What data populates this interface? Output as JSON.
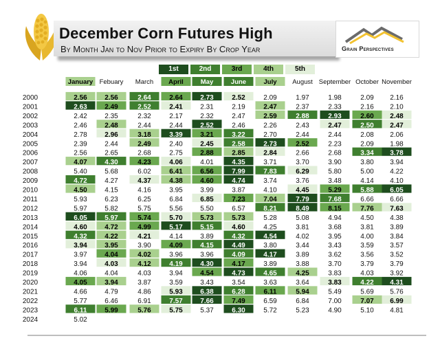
{
  "header": {
    "title": "December Corn Futures High",
    "subtitle": "By Month Jan to Nov Prior to Expiry By Crop Year",
    "logo_text": "Grain Perspectives"
  },
  "legend": {
    "items": [
      {
        "label": "1st",
        "color": "#1e4d1e"
      },
      {
        "label": "2nd",
        "color": "#3f7f2f"
      },
      {
        "label": "3rd",
        "color": "#6aa84f"
      },
      {
        "label": "4th",
        "color": "#a9d08e"
      },
      {
        "label": "5th",
        "color": "#e2efda"
      }
    ]
  },
  "chart_data": {
    "type": "table",
    "title": "December Corn Futures High",
    "subtitle": "By Month Jan to Nov Prior to Expiry By Crop Year",
    "columns": [
      "January",
      "Febuary",
      "March",
      "April",
      "May",
      "June",
      "July",
      "August",
      "September",
      "October",
      "November"
    ],
    "column_rank": [
      4,
      0,
      0,
      3,
      2,
      2,
      4,
      0,
      0,
      0,
      0
    ],
    "rows": [
      {
        "year": "2000",
        "values": [
          2.56,
          2.56,
          2.64,
          2.64,
          2.73,
          2.52,
          2.09,
          1.97,
          1.98,
          2.09,
          2.16
        ],
        "ranks": [
          4,
          4,
          2,
          3,
          1,
          5,
          0,
          0,
          0,
          0,
          0
        ]
      },
      {
        "year": "2001",
        "values": [
          2.63,
          2.49,
          2.52,
          2.41,
          2.31,
          2.19,
          2.47,
          2.37,
          2.33,
          2.16,
          2.1
        ],
        "ranks": [
          1,
          3,
          2,
          5,
          0,
          0,
          4,
          0,
          0,
          0,
          0
        ]
      },
      {
        "year": "2002",
        "values": [
          2.42,
          2.35,
          2.32,
          2.17,
          2.32,
          2.47,
          2.59,
          2.88,
          2.93,
          2.6,
          2.48
        ],
        "ranks": [
          0,
          0,
          0,
          0,
          0,
          0,
          4,
          2,
          1,
          3,
          5
        ]
      },
      {
        "year": "2003",
        "values": [
          2.46,
          2.48,
          2.44,
          2.44,
          2.52,
          2.46,
          2.26,
          2.43,
          2.47,
          2.5,
          2.47
        ],
        "ranks": [
          0,
          4,
          0,
          0,
          1,
          0,
          0,
          0,
          5,
          2,
          5
        ]
      },
      {
        "year": "2004",
        "values": [
          2.78,
          2.96,
          3.18,
          3.39,
          3.21,
          3.22,
          2.7,
          2.44,
          2.44,
          2.08,
          2.06
        ],
        "ranks": [
          0,
          5,
          4,
          1,
          3,
          2,
          0,
          0,
          0,
          0,
          0
        ]
      },
      {
        "year": "2005",
        "values": [
          2.39,
          2.44,
          2.49,
          2.4,
          2.45,
          2.58,
          2.73,
          2.52,
          2.23,
          2.09,
          1.98
        ],
        "ranks": [
          0,
          0,
          4,
          0,
          5,
          2,
          1,
          3,
          0,
          0,
          0
        ]
      },
      {
        "year": "2006",
        "values": [
          2.56,
          2.65,
          2.68,
          2.75,
          2.88,
          2.85,
          2.84,
          2.66,
          2.68,
          3.34,
          3.78
        ],
        "ranks": [
          0,
          0,
          0,
          0,
          3,
          4,
          5,
          0,
          0,
          2,
          1
        ]
      },
      {
        "year": "2007",
        "values": [
          4.07,
          4.3,
          4.23,
          4.06,
          4.01,
          4.35,
          3.71,
          3.7,
          3.9,
          3.8,
          3.94
        ],
        "ranks": [
          4,
          2,
          3,
          5,
          0,
          1,
          0,
          0,
          0,
          0,
          0
        ]
      },
      {
        "year": "2008",
        "values": [
          5.4,
          5.68,
          6.02,
          6.41,
          6.56,
          7.99,
          7.83,
          6.29,
          5.8,
          5.0,
          4.22
        ],
        "ranks": [
          0,
          0,
          0,
          4,
          3,
          1,
          2,
          5,
          0,
          0,
          0
        ]
      },
      {
        "year": "2009",
        "values": [
          4.72,
          4.27,
          4.37,
          4.38,
          4.6,
          4.74,
          3.74,
          3.76,
          3.48,
          4.14,
          4.1
        ],
        "ranks": [
          2,
          0,
          5,
          4,
          3,
          1,
          0,
          0,
          0,
          0,
          0
        ]
      },
      {
        "year": "2010",
        "values": [
          4.5,
          4.15,
          4.16,
          3.95,
          3.99,
          3.87,
          4.1,
          4.45,
          5.29,
          5.88,
          6.05
        ],
        "ranks": [
          4,
          0,
          0,
          0,
          0,
          0,
          0,
          5,
          3,
          2,
          1
        ]
      },
      {
        "year": "2011",
        "values": [
          5.93,
          6.23,
          6.25,
          6.84,
          6.85,
          7.23,
          7.04,
          7.79,
          7.68,
          6.66,
          6.66
        ],
        "ranks": [
          0,
          0,
          0,
          0,
          5,
          3,
          4,
          1,
          2,
          0,
          0
        ]
      },
      {
        "year": "2012",
        "values": [
          5.97,
          5.82,
          5.75,
          5.56,
          5.5,
          6.57,
          8.21,
          8.49,
          8.15,
          7.76,
          7.63
        ],
        "ranks": [
          0,
          0,
          0,
          0,
          0,
          0,
          2,
          1,
          3,
          4,
          5
        ]
      },
      {
        "year": "2013",
        "values": [
          6.05,
          5.97,
          5.74,
          5.7,
          5.73,
          5.73,
          5.28,
          5.08,
          4.94,
          4.5,
          4.38
        ],
        "ranks": [
          1,
          2,
          3,
          5,
          4,
          4,
          0,
          0,
          0,
          0,
          0
        ]
      },
      {
        "year": "2014",
        "values": [
          4.6,
          4.72,
          4.99,
          5.17,
          5.15,
          4.6,
          4.25,
          3.81,
          3.68,
          3.81,
          3.89
        ],
        "ranks": [
          5,
          4,
          3,
          1,
          2,
          5,
          0,
          0,
          0,
          0,
          0
        ]
      },
      {
        "year": "2015",
        "values": [
          4.32,
          4.22,
          4.21,
          4.14,
          3.89,
          4.32,
          4.54,
          4.02,
          3.95,
          4.0,
          3.84
        ],
        "ranks": [
          2,
          4,
          5,
          0,
          0,
          2,
          1,
          0,
          0,
          0,
          0
        ]
      },
      {
        "year": "2016",
        "values": [
          3.94,
          3.95,
          3.9,
          4.09,
          4.15,
          4.49,
          3.8,
          3.44,
          3.43,
          3.59,
          3.57
        ],
        "ranks": [
          5,
          4,
          0,
          3,
          2,
          1,
          0,
          0,
          0,
          0,
          0
        ]
      },
      {
        "year": "2017",
        "values": [
          3.97,
          4.04,
          4.02,
          3.96,
          3.96,
          4.09,
          4.17,
          3.89,
          3.62,
          3.56,
          3.52
        ],
        "ranks": [
          0,
          3,
          4,
          0,
          0,
          2,
          1,
          0,
          0,
          0,
          0
        ]
      },
      {
        "year": "2018",
        "values": [
          3.94,
          4.03,
          4.12,
          4.19,
          4.3,
          4.17,
          3.89,
          3.88,
          3.7,
          3.79,
          3.79
        ],
        "ranks": [
          0,
          5,
          4,
          2,
          1,
          3,
          0,
          0,
          0,
          0,
          0
        ]
      },
      {
        "year": "2019",
        "values": [
          4.06,
          4.04,
          4.03,
          3.94,
          4.54,
          4.73,
          4.65,
          4.25,
          3.83,
          4.03,
          3.92
        ],
        "ranks": [
          0,
          0,
          0,
          0,
          3,
          1,
          2,
          4,
          0,
          0,
          0
        ]
      },
      {
        "year": "2020",
        "values": [
          4.05,
          3.94,
          3.87,
          3.59,
          3.43,
          3.54,
          3.63,
          3.64,
          3.83,
          4.22,
          4.31
        ],
        "ranks": [
          3,
          4,
          0,
          0,
          0,
          0,
          0,
          0,
          5,
          2,
          1
        ]
      },
      {
        "year": "2021",
        "values": [
          4.66,
          4.79,
          4.86,
          5.93,
          6.38,
          6.28,
          6.11,
          5.94,
          5.49,
          5.69,
          5.76
        ],
        "ranks": [
          0,
          0,
          0,
          5,
          1,
          2,
          3,
          4,
          0,
          0,
          0
        ]
      },
      {
        "year": "2022",
        "values": [
          5.77,
          6.46,
          6.91,
          7.57,
          7.66,
          7.49,
          6.59,
          6.84,
          7.0,
          7.07,
          6.99
        ],
        "ranks": [
          0,
          0,
          0,
          2,
          1,
          3,
          0,
          0,
          0,
          4,
          5
        ]
      },
      {
        "year": "2023",
        "values": [
          6.11,
          5.99,
          5.76,
          5.75,
          5.37,
          6.3,
          5.72,
          5.23,
          4.9,
          5.1,
          4.81
        ],
        "ranks": [
          2,
          3,
          4,
          5,
          0,
          1,
          0,
          0,
          0,
          0,
          0
        ]
      },
      {
        "year": "2024",
        "values": [
          5.02,
          null,
          null,
          null,
          null,
          null,
          null,
          null,
          null,
          null,
          null
        ],
        "ranks": [
          0,
          0,
          0,
          0,
          0,
          0,
          0,
          0,
          0,
          0,
          0
        ]
      }
    ]
  }
}
